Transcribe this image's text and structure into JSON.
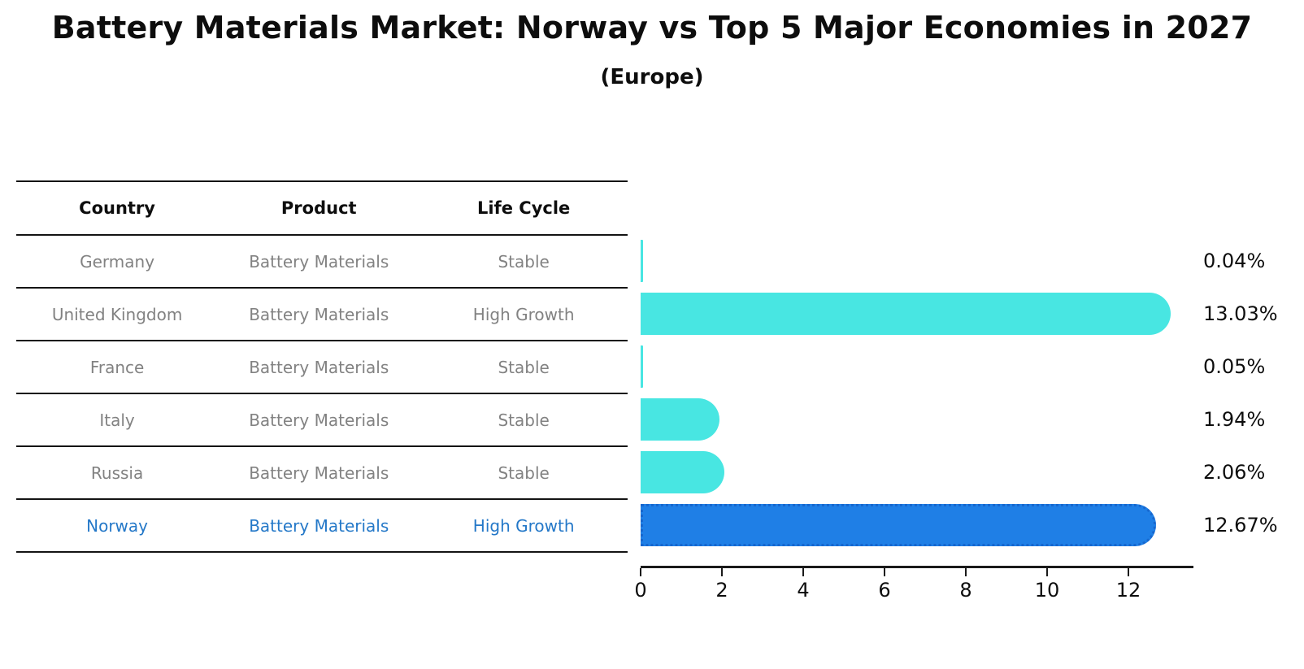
{
  "figure": {
    "title": "Battery Materials Market: Norway vs Top 5 Major Economies in 2027",
    "subtitle": "(Europe)"
  },
  "table": {
    "headers": [
      "Country",
      "Product",
      "Life Cycle"
    ],
    "rows": [
      {
        "country": "Germany",
        "product": "Battery Materials",
        "life_cycle": "Stable",
        "highlight": false
      },
      {
        "country": "United Kingdom",
        "product": "Battery Materials",
        "life_cycle": "High Growth",
        "highlight": false
      },
      {
        "country": "France",
        "product": "Battery Materials",
        "life_cycle": "Stable",
        "highlight": false
      },
      {
        "country": "Italy",
        "product": "Battery Materials",
        "life_cycle": "Stable",
        "highlight": false
      },
      {
        "country": "Russia",
        "product": "Battery Materials",
        "life_cycle": "Stable",
        "highlight": false
      },
      {
        "country": "Norway",
        "product": "Battery Materials",
        "life_cycle": "High Growth",
        "highlight": true
      }
    ]
  },
  "chart_data": {
    "type": "bar",
    "orientation": "horizontal",
    "title": "Battery Materials Market: Norway vs Top 5 Major Economies in 2027",
    "subtitle": "(Europe)",
    "categories": [
      "Germany",
      "United Kingdom",
      "France",
      "Italy",
      "Russia",
      "Norway"
    ],
    "values": [
      0.04,
      13.03,
      0.05,
      1.94,
      2.06,
      12.67
    ],
    "value_labels": [
      "0.04%",
      "13.03%",
      "0.05%",
      "1.94%",
      "2.06%",
      "12.67%"
    ],
    "x_tick_labels": [
      "0",
      "2",
      "4",
      "6",
      "8",
      "10",
      "12"
    ],
    "x_ticks": [
      0,
      2,
      4,
      6,
      8,
      10,
      12
    ],
    "xlim": [
      0,
      13.6
    ],
    "grid": false,
    "legend": "none",
    "highlight_index": 5
  },
  "colors": {
    "bar_default": "#48e6e2",
    "bar_highlight": "#1f7fe6",
    "bar_highlight_edge": "#1767ce",
    "highlight_text": "#2478c8",
    "table_text": "#828282",
    "header_text": "#0d0d0d",
    "axis": "#1a1a1a"
  }
}
